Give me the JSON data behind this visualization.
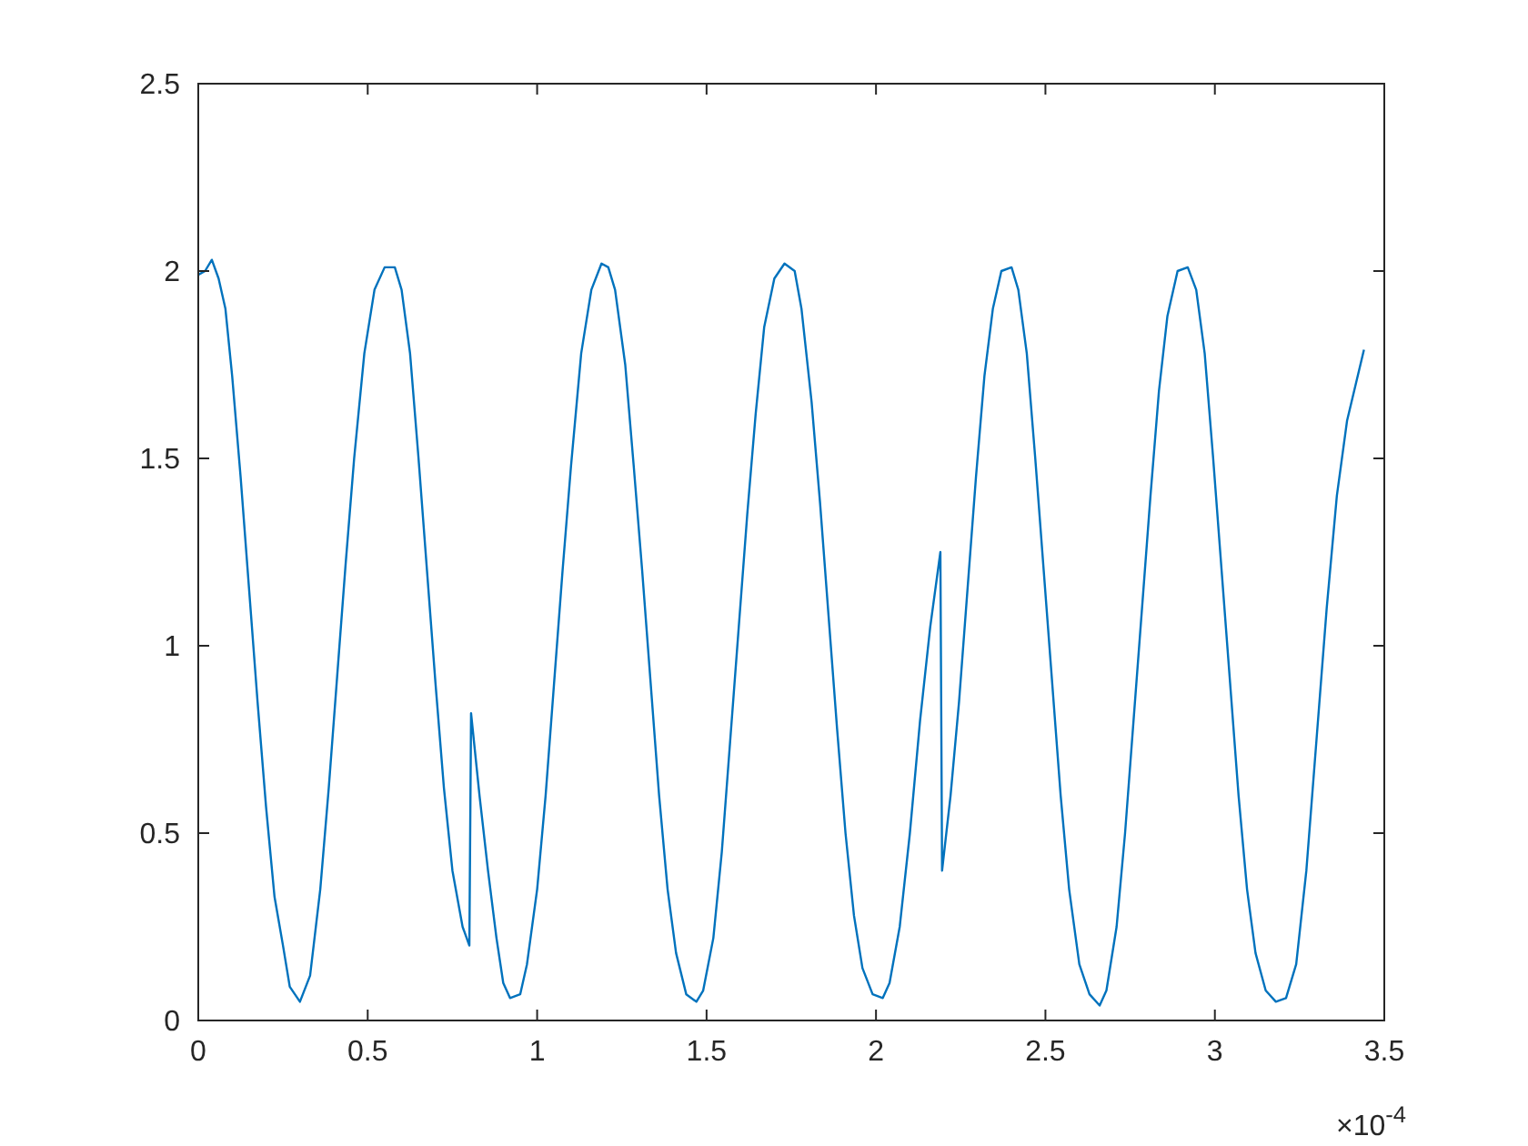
{
  "chart_data": {
    "type": "line",
    "xlim": [
      0,
      3.5
    ],
    "ylim": [
      0,
      2.5
    ],
    "xticks": [
      0,
      {
        "value": 0.5,
        "label": "0.5"
      },
      1,
      {
        "value": 1.5,
        "label": "1.5"
      },
      2,
      {
        "value": 2.5,
        "label": "2.5"
      },
      3,
      {
        "value": 3.5,
        "label": "3.5"
      }
    ],
    "yticks": [
      0,
      {
        "value": 0.5,
        "label": "0.5"
      },
      1,
      {
        "value": 1.5,
        "label": "1.5"
      },
      2,
      {
        "value": 2.5,
        "label": "2.5"
      }
    ],
    "grid": false,
    "line_style": "solid",
    "marker": "none",
    "annotations": [
      "×10$^{-4}$"
    ],
    "series": [
      {
        "color": "#0072bd",
        "x": [
          0,
          0.02,
          0.04,
          0.06,
          0.08,
          0.1,
          0.125,
          0.15,
          0.175,
          0.2,
          0.225,
          0.25,
          0.27,
          0.3,
          0.33,
          0.36,
          0.385,
          0.41,
          0.435,
          0.46,
          0.49,
          0.52,
          0.55,
          0.58,
          0.6,
          0.625,
          0.65,
          0.675,
          0.7,
          0.725,
          0.75,
          0.78,
          0.8,
          0.805,
          0.83,
          0.855,
          0.88,
          0.9,
          0.92,
          0.95,
          0.97,
          1.0,
          1.025,
          1.05,
          1.075,
          1.1,
          1.13,
          1.16,
          1.19,
          1.21,
          1.23,
          1.26,
          1.285,
          1.31,
          1.335,
          1.36,
          1.385,
          1.41,
          1.44,
          1.47,
          1.49,
          1.52,
          1.545,
          1.57,
          1.595,
          1.62,
          1.645,
          1.67,
          1.7,
          1.73,
          1.76,
          1.78,
          1.81,
          1.835,
          1.86,
          1.885,
          1.91,
          1.935,
          1.96,
          1.99,
          2.02,
          2.04,
          2.07,
          2.1,
          2.13,
          2.16,
          2.19,
          2.195,
          2.22,
          2.245,
          2.27,
          2.295,
          2.32,
          2.345,
          2.37,
          2.4,
          2.42,
          2.445,
          2.47,
          2.495,
          2.52,
          2.545,
          2.57,
          2.6,
          2.63,
          2.66,
          2.68,
          2.71,
          2.735,
          2.76,
          2.785,
          2.81,
          2.835,
          2.86,
          2.89,
          2.92,
          2.945,
          2.97,
          2.995,
          3.02,
          3.045,
          3.07,
          3.095,
          3.12,
          3.15,
          3.18,
          3.21,
          3.24,
          3.27,
          3.3,
          3.33,
          3.36,
          3.39,
          3.44
        ],
        "values": [
          1.99,
          2.0,
          2.03,
          1.98,
          1.9,
          1.72,
          1.45,
          1.15,
          0.85,
          0.57,
          0.33,
          0.2,
          0.09,
          0.05,
          0.12,
          0.35,
          0.62,
          0.92,
          1.22,
          1.5,
          1.78,
          1.95,
          2.01,
          2.01,
          1.95,
          1.78,
          1.5,
          1.2,
          0.9,
          0.62,
          0.4,
          0.25,
          0.2,
          0.82,
          0.6,
          0.4,
          0.22,
          0.1,
          0.06,
          0.07,
          0.15,
          0.35,
          0.6,
          0.9,
          1.2,
          1.48,
          1.78,
          1.95,
          2.02,
          2.01,
          1.95,
          1.75,
          1.48,
          1.2,
          0.9,
          0.6,
          0.35,
          0.18,
          0.07,
          0.05,
          0.08,
          0.22,
          0.45,
          0.75,
          1.05,
          1.35,
          1.62,
          1.85,
          1.98,
          2.02,
          2.0,
          1.9,
          1.65,
          1.38,
          1.08,
          0.78,
          0.5,
          0.28,
          0.14,
          0.07,
          0.06,
          0.1,
          0.25,
          0.5,
          0.8,
          1.05,
          1.25,
          0.4,
          0.6,
          0.85,
          1.15,
          1.45,
          1.72,
          1.9,
          2.0,
          2.01,
          1.95,
          1.78,
          1.5,
          1.2,
          0.9,
          0.6,
          0.35,
          0.15,
          0.07,
          0.04,
          0.08,
          0.25,
          0.5,
          0.8,
          1.1,
          1.4,
          1.68,
          1.88,
          2.0,
          2.01,
          1.95,
          1.78,
          1.5,
          1.2,
          0.9,
          0.6,
          0.35,
          0.18,
          0.08,
          0.05,
          0.06,
          0.15,
          0.4,
          0.75,
          1.1,
          1.4,
          1.6,
          1.79
        ]
      }
    ]
  }
}
